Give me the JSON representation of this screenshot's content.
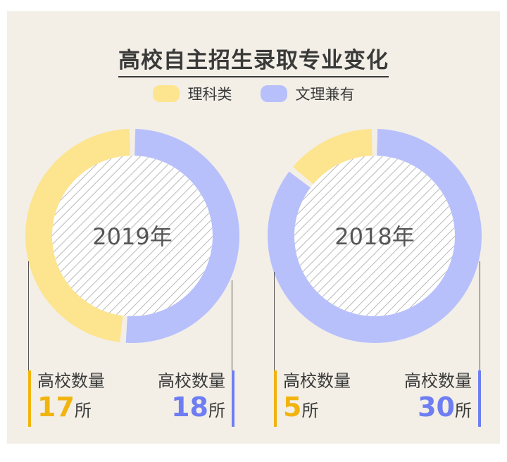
{
  "title": "高校自主招生录取专业变化",
  "colors": {
    "science": "#fde48f",
    "both": "#b7c0fb",
    "science_text": "#f1b40f",
    "both_text": "#6e7ef2",
    "background": "#f3efe7"
  },
  "legend": [
    {
      "label": "理科类",
      "color": "#fde48f"
    },
    {
      "label": "文理兼有",
      "color": "#b7c0fb"
    }
  ],
  "chart_data": [
    {
      "type": "pie",
      "title": "2019年",
      "series": [
        {
          "name": "理科类",
          "value": 17
        },
        {
          "name": "文理兼有",
          "value": 18
        }
      ]
    },
    {
      "type": "pie",
      "title": "2018年",
      "series": [
        {
          "name": "理科类",
          "value": 5
        },
        {
          "name": "文理兼有",
          "value": 30
        }
      ]
    }
  ],
  "counts": {
    "label": "高校数量",
    "unit": "所",
    "y2019_science": "17",
    "y2019_both": "18",
    "y2018_science": "5",
    "y2018_both": "30"
  }
}
